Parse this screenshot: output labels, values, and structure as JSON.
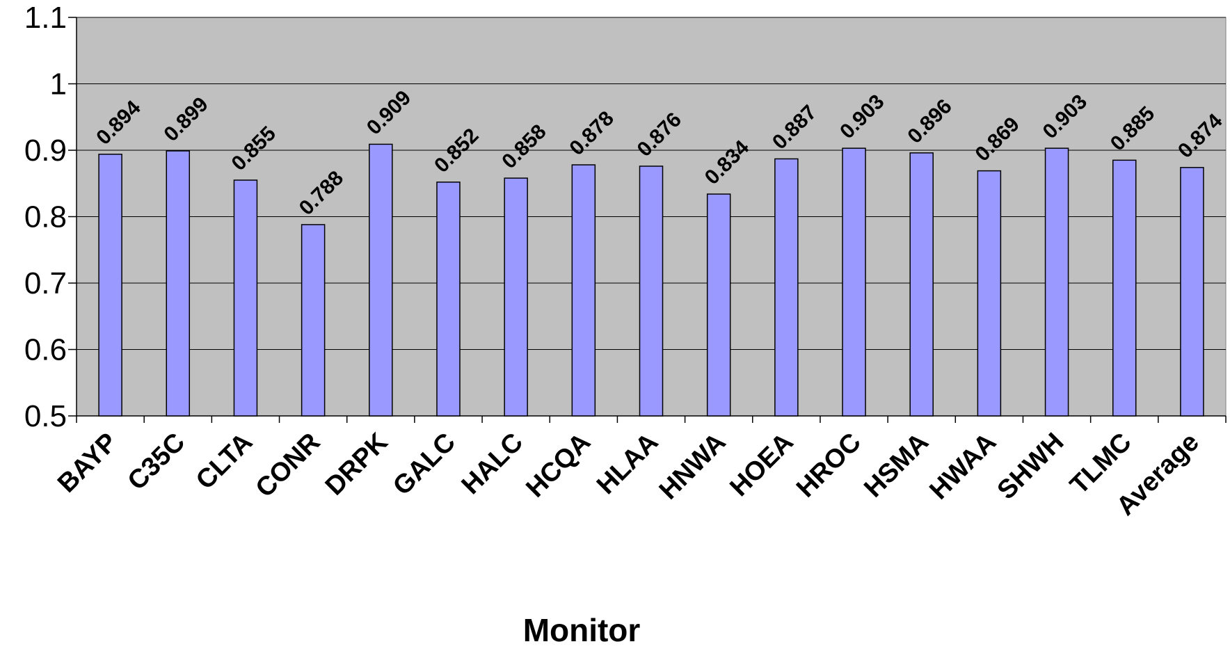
{
  "chart_data": {
    "type": "bar",
    "title": "",
    "xlabel": "Monitor",
    "ylabel": "",
    "ylim": [
      0.5,
      1.1
    ],
    "yticks": [
      "0.5",
      "0.6",
      "0.7",
      "0.8",
      "0.9",
      "1",
      "1.1"
    ],
    "grid": true,
    "legend": "none",
    "categories": [
      "BAYP",
      "C35C",
      "CLTA",
      "CONR",
      "DRPK",
      "GALC",
      "HALC",
      "HCQA",
      "HLAA",
      "HNWA",
      "HOEA",
      "HROC",
      "HSMA",
      "HWAA",
      "SHWH",
      "TLMC",
      "Average"
    ],
    "values": [
      0.894,
      0.899,
      0.855,
      0.788,
      0.909,
      0.852,
      0.858,
      0.878,
      0.876,
      0.834,
      0.887,
      0.903,
      0.896,
      0.869,
      0.903,
      0.885,
      0.874
    ],
    "value_labels": [
      "0.894",
      "0.899",
      "0.855",
      "0.788",
      "0.909",
      "0.852",
      "0.858",
      "0.878",
      "0.876",
      "0.834",
      "0.887",
      "0.903",
      "0.896",
      "0.869",
      "0.903",
      "0.885",
      "0.874"
    ],
    "colors": {
      "bar": "#9999ff",
      "plot_bg": "#c0c0c0",
      "grid": "#000000",
      "bar_stroke": "#000000"
    }
  }
}
